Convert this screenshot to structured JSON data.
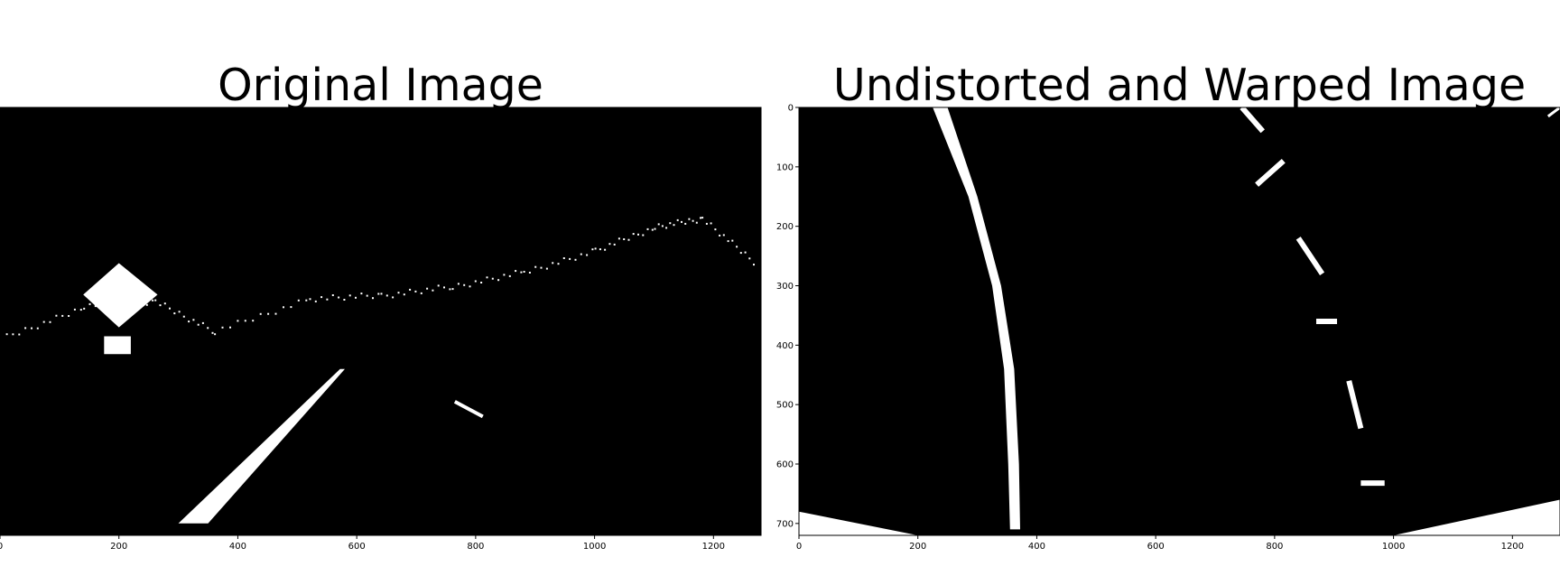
{
  "figure": {
    "background": "#ffffff",
    "image_background": "#000000",
    "marking_color": "#ffffff"
  },
  "chart_data": [
    {
      "type": "image",
      "title": "Original Image",
      "xlim": [
        0,
        1280
      ],
      "ylim": [
        720,
        0
      ],
      "x_ticks": [
        0,
        200,
        400,
        600,
        800,
        1000,
        1200
      ],
      "x_tick_labels": [
        "0",
        "200",
        "400",
        "600",
        "800",
        "1000",
        "1200"
      ],
      "y_ticks": [],
      "y_tick_labels": [],
      "features": {
        "lane_line": [
          [
            300,
            700
          ],
          [
            350,
            700
          ],
          [
            580,
            440
          ],
          [
            572,
            440
          ]
        ],
        "sign_diamond": [
          [
            200,
            262
          ],
          [
            265,
            315
          ],
          [
            200,
            370
          ],
          [
            140,
            315
          ]
        ],
        "sign_plate": [
          [
            175,
            385
          ],
          [
            220,
            385
          ],
          [
            220,
            415
          ],
          [
            175,
            415
          ]
        ],
        "right_lane_fragment": [
          [
            765,
            495
          ],
          [
            812,
            520
          ]
        ],
        "horizon_noise": [
          [
            10,
            385
          ],
          [
            140,
            335
          ],
          [
            260,
            325
          ],
          [
            360,
            375
          ],
          [
            520,
            320
          ],
          [
            640,
            315
          ],
          [
            760,
            300
          ],
          [
            880,
            275
          ],
          [
            1000,
            240
          ],
          [
            1100,
            200
          ],
          [
            1180,
            185
          ],
          [
            1270,
            260
          ]
        ]
      }
    },
    {
      "type": "image",
      "title": "Undistorted and Warped Image",
      "xlim": [
        0,
        1280
      ],
      "ylim": [
        720,
        0
      ],
      "x_ticks": [
        0,
        200,
        400,
        600,
        800,
        1000,
        1200
      ],
      "x_tick_labels": [
        "0",
        "200",
        "400",
        "600",
        "800",
        "1000",
        "1200"
      ],
      "y_ticks": [
        0,
        100,
        200,
        300,
        400,
        500,
        600,
        700
      ],
      "y_tick_labels": [
        "0",
        "100",
        "200",
        "300",
        "400",
        "500",
        "600",
        "700"
      ],
      "features": {
        "left_lane_curve": [
          [
            225,
            0
          ],
          [
            250,
            0
          ],
          [
            300,
            150
          ],
          [
            340,
            300
          ],
          [
            362,
            440
          ],
          [
            370,
            600
          ],
          [
            372,
            710
          ],
          [
            355,
            710
          ],
          [
            352,
            600
          ],
          [
            345,
            440
          ],
          [
            325,
            300
          ],
          [
            285,
            150
          ]
        ],
        "right_dashes": [
          [
            [
              840,
              220
            ],
            [
              880,
              280
            ]
          ],
          [
            [
              770,
              130
            ],
            [
              815,
              90
            ]
          ],
          [
            [
              745,
              0
            ],
            [
              780,
              40
            ]
          ],
          [
            [
              925,
              460
            ],
            [
              945,
              540
            ]
          ],
          [
            [
              870,
              360
            ],
            [
              905,
              360
            ]
          ],
          [
            [
              945,
              632
            ],
            [
              985,
              632
            ]
          ]
        ],
        "bottom_left_wedge": [
          [
            0,
            680
          ],
          [
            200,
            720
          ],
          [
            0,
            720
          ]
        ],
        "bottom_right_wedge": [
          [
            1000,
            720
          ],
          [
            1280,
            660
          ],
          [
            1280,
            720
          ]
        ],
        "top_right_spec": [
          [
            1260,
            15
          ],
          [
            1280,
            0
          ]
        ]
      }
    }
  ]
}
